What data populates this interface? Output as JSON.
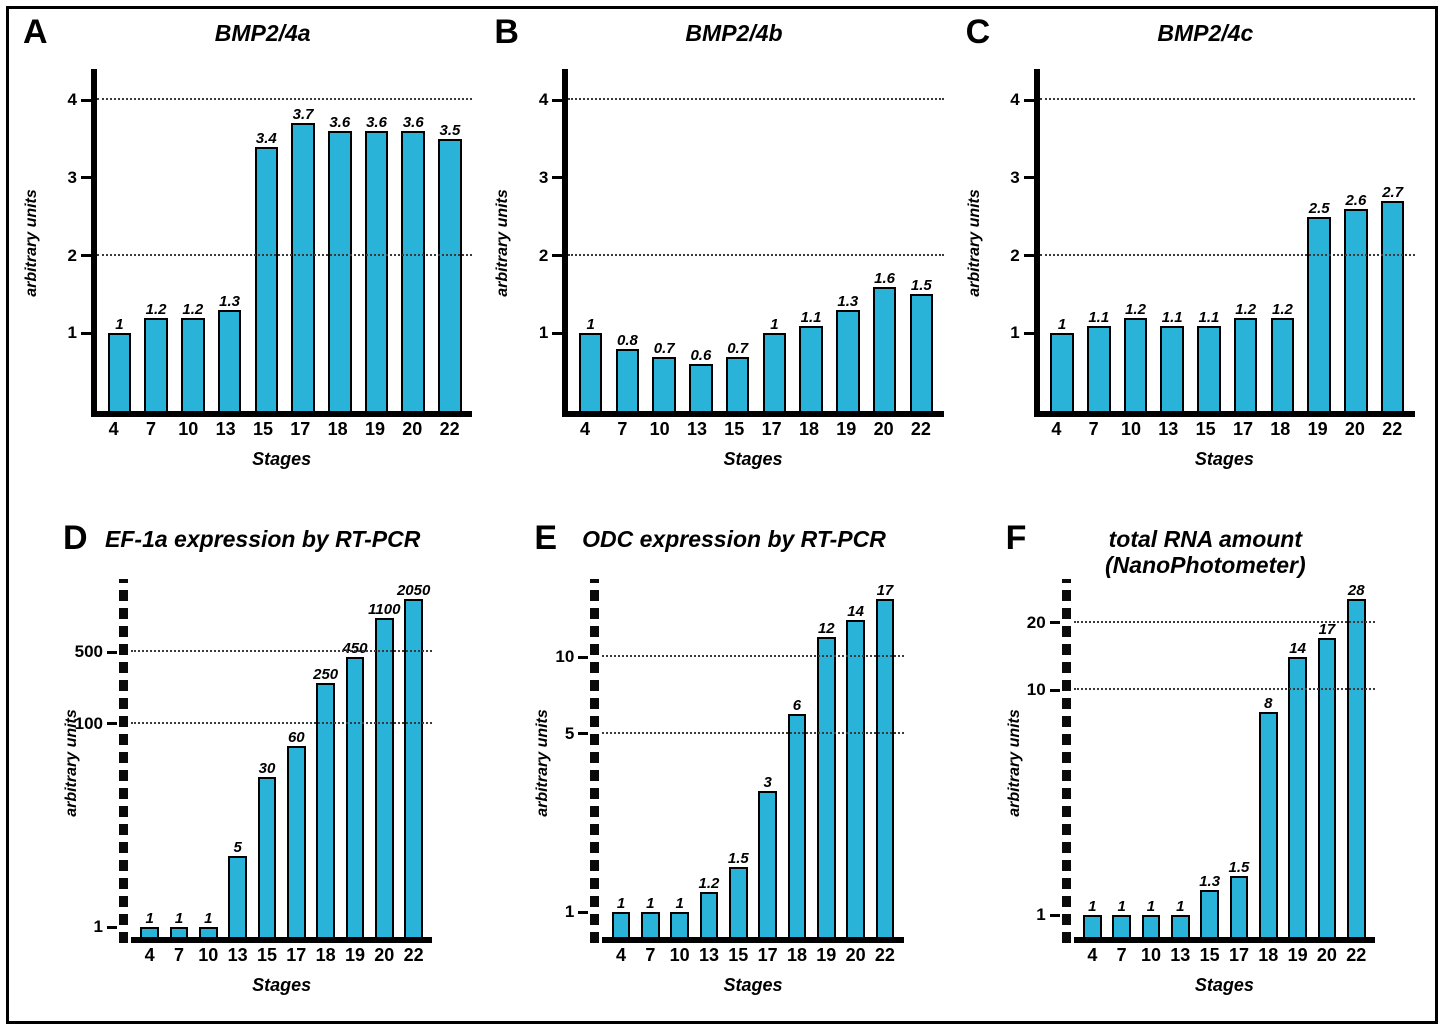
{
  "figure": {
    "background": "#ffffff",
    "border_color": "#000000",
    "bar_fill": "#2ab3d9",
    "bar_stroke": "#000000",
    "grid_color": "#3a3a3a"
  },
  "chart_data": [
    {
      "type": "bar",
      "panel": "A",
      "title": "BMP2/4a",
      "xlabel": "Stages",
      "ylabel": "arbitrary units",
      "categories": [
        "4",
        "7",
        "10",
        "13",
        "15",
        "17",
        "18",
        "19",
        "20",
        "22"
      ],
      "values": [
        1,
        1.2,
        1.2,
        1.3,
        3.4,
        3.7,
        3.6,
        3.6,
        3.6,
        3.5
      ],
      "value_labels": [
        "1",
        "1.2",
        "1.2",
        "1.3",
        "3.4",
        "3.7",
        "3.6",
        "3.6",
        "3.6",
        "3.5"
      ],
      "scale": "linear",
      "ymin": 0,
      "ymax": 4.4,
      "yticks": [
        {
          "value": 1,
          "label": "1"
        },
        {
          "value": 2,
          "label": "2"
        },
        {
          "value": 3,
          "label": "3"
        },
        {
          "value": 4,
          "label": "4"
        }
      ],
      "gridlines": [
        2,
        4
      ],
      "y_axis_style": "solid",
      "grid_on": true,
      "legend": "none"
    },
    {
      "type": "bar",
      "panel": "B",
      "title": "BMP2/4b",
      "xlabel": "Stages",
      "ylabel": "arbitrary units",
      "categories": [
        "4",
        "7",
        "10",
        "13",
        "15",
        "17",
        "18",
        "19",
        "20",
        "22"
      ],
      "values": [
        1,
        0.8,
        0.7,
        0.6,
        0.7,
        1,
        1.1,
        1.3,
        1.6,
        1.5
      ],
      "value_labels": [
        "1",
        "0.8",
        "0.7",
        "0.6",
        "0.7",
        "1",
        "1.1",
        "1.3",
        "1.6",
        "1.5"
      ],
      "scale": "linear",
      "ymin": 0,
      "ymax": 4.4,
      "yticks": [
        {
          "value": 1,
          "label": "1"
        },
        {
          "value": 2,
          "label": "2"
        },
        {
          "value": 3,
          "label": "3"
        },
        {
          "value": 4,
          "label": "4"
        }
      ],
      "gridlines": [
        2,
        4
      ],
      "y_axis_style": "solid",
      "grid_on": true,
      "legend": "none"
    },
    {
      "type": "bar",
      "panel": "C",
      "title": "BMP2/4c",
      "xlabel": "Stages",
      "ylabel": "arbitrary units",
      "categories": [
        "4",
        "7",
        "10",
        "13",
        "15",
        "17",
        "18",
        "19",
        "20",
        "22"
      ],
      "values": [
        1,
        1.1,
        1.2,
        1.1,
        1.1,
        1.2,
        1.2,
        2.5,
        2.6,
        2.7
      ],
      "value_labels": [
        "1",
        "1.1",
        "1.2",
        "1.1",
        "1.1",
        "1.2",
        "1.2",
        "2.5",
        "2.6",
        "2.7"
      ],
      "scale": "linear",
      "ymin": 0,
      "ymax": 4.4,
      "yticks": [
        {
          "value": 1,
          "label": "1"
        },
        {
          "value": 2,
          "label": "2"
        },
        {
          "value": 3,
          "label": "3"
        },
        {
          "value": 4,
          "label": "4"
        }
      ],
      "gridlines": [
        2,
        4
      ],
      "y_axis_style": "solid",
      "grid_on": true,
      "legend": "none"
    },
    {
      "type": "bar",
      "panel": "D",
      "title": "EF-1a expression by RT-PCR",
      "xlabel": "Stages",
      "ylabel": "arbitrary units",
      "categories": [
        "4",
        "7",
        "10",
        "13",
        "15",
        "17",
        "18",
        "19",
        "20",
        "22"
      ],
      "values": [
        1,
        1,
        1,
        5,
        30,
        60,
        250,
        450,
        1100,
        2050
      ],
      "value_labels": [
        "1",
        "1",
        "1",
        "5",
        "30",
        "60",
        "250",
        "450",
        "1100",
        "2050"
      ],
      "scale": "log",
      "ymin": 0.8,
      "ymax": 2400,
      "yticks": [
        {
          "value": 1,
          "label": "1"
        },
        {
          "value": 100,
          "label": "100"
        },
        {
          "value": 500,
          "label": "500"
        }
      ],
      "gridlines": [
        100,
        500
      ],
      "y_axis_style": "dashed",
      "grid_on": true,
      "legend": "none"
    },
    {
      "type": "bar",
      "panel": "E",
      "title": "ODC expression by RT-PCR",
      "xlabel": "Stages",
      "ylabel": "arbitrary units",
      "categories": [
        "4",
        "7",
        "10",
        "13",
        "15",
        "17",
        "18",
        "19",
        "20",
        "22"
      ],
      "values": [
        1,
        1,
        1,
        1.2,
        1.5,
        3,
        6,
        12,
        14,
        17
      ],
      "value_labels": [
        "1",
        "1",
        "1",
        "1.2",
        "1.5",
        "3",
        "6",
        "12",
        "14",
        "17"
      ],
      "scale": "log",
      "ymin": 0.8,
      "ymax": 19.5,
      "yticks": [
        {
          "value": 1,
          "label": "1"
        },
        {
          "value": 5,
          "label": "5"
        },
        {
          "value": 10,
          "label": "10"
        }
      ],
      "gridlines": [
        5,
        10
      ],
      "y_axis_style": "dashed",
      "grid_on": true,
      "legend": "none"
    },
    {
      "type": "bar",
      "panel": "F",
      "title": "total RNA amount\n(NanoPhotometer)",
      "xlabel": "Stages",
      "ylabel": "arbitrary units",
      "categories": [
        "4",
        "7",
        "10",
        "13",
        "15",
        "17",
        "18",
        "19",
        "20",
        "22"
      ],
      "values": [
        1,
        1,
        1,
        1,
        1.3,
        1.5,
        8,
        14,
        17,
        28
      ],
      "value_labels": [
        "1",
        "1",
        "1",
        "1",
        "1.3",
        "1.5",
        "8",
        "14",
        "17",
        "28"
      ],
      "scale": "log",
      "ymin": 0.8,
      "ymax": 30,
      "yticks": [
        {
          "value": 1,
          "label": "1"
        },
        {
          "value": 10,
          "label": "10"
        },
        {
          "value": 20,
          "label": "20"
        }
      ],
      "gridlines": [
        10,
        20
      ],
      "y_axis_style": "dashed",
      "grid_on": true,
      "legend": "none"
    }
  ]
}
